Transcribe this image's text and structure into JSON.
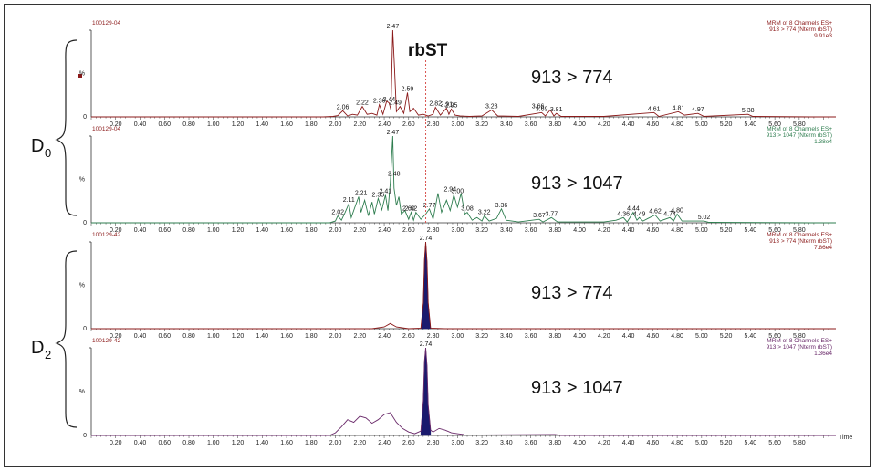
{
  "analyte_label": "rbST",
  "groups": [
    {
      "main": "D",
      "sub": "0"
    },
    {
      "main": "D",
      "sub": "2"
    }
  ],
  "x_tick_labels": [
    "0.20",
    "0.40",
    "0.60",
    "0.80",
    "1.00",
    "1.20",
    "1.40",
    "1.60",
    "1.80",
    "2.00",
    "2.20",
    "2.40",
    "2.60",
    "2.80",
    "3.00",
    "3.20",
    "3.40",
    "3.60",
    "3.80",
    "4.00",
    "4.20",
    "4.40",
    "4.60",
    "4.80",
    "5.00",
    "5.20",
    "5.40",
    "5.60",
    "5.80"
  ],
  "x_axis_title": "Time",
  "y_axis_symbol": "%",
  "y_zero": "0",
  "chart_data": [
    {
      "type": "line",
      "sample": "100129-04",
      "transition_label": "913 > 774",
      "header_lines": [
        "MRM of 8 Channels ES+",
        "913 > 774 (Nterm rbST)",
        "9.91e3"
      ],
      "color": "#8b1a1a",
      "fill": false,
      "xlim": [
        0.0,
        6.1
      ],
      "ylim": [
        0,
        100
      ],
      "marker_line_x": 2.74,
      "points": [
        [
          0.0,
          0
        ],
        [
          1.9,
          0
        ],
        [
          1.98,
          0.5
        ],
        [
          2.02,
          1.5
        ],
        [
          2.06,
          7
        ],
        [
          2.1,
          1
        ],
        [
          2.14,
          3
        ],
        [
          2.18,
          2
        ],
        [
          2.22,
          12
        ],
        [
          2.26,
          3
        ],
        [
          2.3,
          4
        ],
        [
          2.34,
          2
        ],
        [
          2.36,
          14
        ],
        [
          2.39,
          3
        ],
        [
          2.42,
          18
        ],
        [
          2.44,
          16
        ],
        [
          2.455,
          8
        ],
        [
          2.47,
          100
        ],
        [
          2.485,
          55
        ],
        [
          2.5,
          6
        ],
        [
          2.53,
          12
        ],
        [
          2.56,
          4
        ],
        [
          2.59,
          28
        ],
        [
          2.61,
          6
        ],
        [
          2.64,
          10
        ],
        [
          2.68,
          2
        ],
        [
          2.72,
          3
        ],
        [
          2.76,
          1
        ],
        [
          2.8,
          3
        ],
        [
          2.82,
          11
        ],
        [
          2.86,
          2
        ],
        [
          2.91,
          10
        ],
        [
          2.93,
          3
        ],
        [
          2.95,
          9
        ],
        [
          2.98,
          2
        ],
        [
          3.02,
          1
        ],
        [
          3.1,
          0.5
        ],
        [
          3.2,
          1
        ],
        [
          3.28,
          8
        ],
        [
          3.33,
          1
        ],
        [
          3.5,
          0.5
        ],
        [
          3.69,
          5
        ],
        [
          3.72,
          1
        ],
        [
          3.76,
          8
        ],
        [
          3.79,
          1
        ],
        [
          3.81,
          4
        ],
        [
          3.85,
          0.5
        ],
        [
          4.2,
          0.5
        ],
        [
          4.61,
          5
        ],
        [
          4.65,
          0.5
        ],
        [
          4.81,
          6
        ],
        [
          4.86,
          2
        ],
        [
          4.97,
          4
        ],
        [
          5.02,
          0.5
        ],
        [
          5.38,
          3
        ],
        [
          5.42,
          0.5
        ],
        [
          5.9,
          0
        ],
        [
          6.1,
          0
        ]
      ],
      "peak_labels": [
        {
          "x": 2.47,
          "y": 100,
          "text": "2.47"
        },
        {
          "x": 2.06,
          "y": 7,
          "text": "2.06"
        },
        {
          "x": 2.22,
          "y": 12,
          "text": "2.22"
        },
        {
          "x": 2.36,
          "y": 14,
          "text": "2.36"
        },
        {
          "x": 2.44,
          "y": 16,
          "text": "2.44"
        },
        {
          "x": 2.49,
          "y": 12,
          "text": "2.49"
        },
        {
          "x": 2.59,
          "y": 28,
          "text": "2.59"
        },
        {
          "x": 2.82,
          "y": 11,
          "text": "2.82"
        },
        {
          "x": 2.91,
          "y": 10,
          "text": "2.91"
        },
        {
          "x": 2.95,
          "y": 9,
          "text": "2.95"
        },
        {
          "x": 3.28,
          "y": 8,
          "text": "3.28"
        },
        {
          "x": 3.66,
          "y": 8,
          "text": "3.66"
        },
        {
          "x": 3.69,
          "y": 5,
          "text": "3.69"
        },
        {
          "x": 3.81,
          "y": 4,
          "text": "3.81"
        },
        {
          "x": 4.61,
          "y": 5,
          "text": "4.61"
        },
        {
          "x": 4.81,
          "y": 6,
          "text": "4.81"
        },
        {
          "x": 4.97,
          "y": 4,
          "text": "4.97"
        },
        {
          "x": 5.38,
          "y": 3,
          "text": "5.38"
        }
      ]
    },
    {
      "type": "line",
      "sample": "100129-04",
      "transition_label": "913 > 1047",
      "header_lines": [
        "MRM of 8 Channels ES+",
        "913 > 1047 (Nterm rbST)",
        "1.38e4"
      ],
      "color": "#2e7d4f",
      "fill": false,
      "xlim": [
        0.0,
        6.1
      ],
      "ylim": [
        0,
        100
      ],
      "marker_line_x": 2.74,
      "points": [
        [
          0.0,
          0
        ],
        [
          1.95,
          0
        ],
        [
          2.0,
          2
        ],
        [
          2.02,
          8
        ],
        [
          2.05,
          3
        ],
        [
          2.08,
          12
        ],
        [
          2.11,
          22
        ],
        [
          2.13,
          6
        ],
        [
          2.16,
          18
        ],
        [
          2.19,
          30
        ],
        [
          2.21,
          12
        ],
        [
          2.24,
          26
        ],
        [
          2.27,
          8
        ],
        [
          2.3,
          24
        ],
        [
          2.32,
          10
        ],
        [
          2.35,
          28
        ],
        [
          2.38,
          15
        ],
        [
          2.41,
          32
        ],
        [
          2.43,
          14
        ],
        [
          2.45,
          46
        ],
        [
          2.47,
          100
        ],
        [
          2.48,
          40
        ],
        [
          2.5,
          20
        ],
        [
          2.52,
          30
        ],
        [
          2.54,
          10
        ],
        [
          2.57,
          14
        ],
        [
          2.6,
          4
        ],
        [
          2.62,
          12
        ],
        [
          2.64,
          3
        ],
        [
          2.66,
          12
        ],
        [
          2.7,
          4
        ],
        [
          2.74,
          10
        ],
        [
          2.77,
          16
        ],
        [
          2.8,
          4
        ],
        [
          2.84,
          34
        ],
        [
          2.87,
          12
        ],
        [
          2.91,
          26
        ],
        [
          2.94,
          14
        ],
        [
          2.97,
          32
        ],
        [
          3.0,
          18
        ],
        [
          3.03,
          34
        ],
        [
          3.06,
          10
        ],
        [
          3.08,
          12
        ],
        [
          3.12,
          3
        ],
        [
          3.16,
          6
        ],
        [
          3.2,
          2
        ],
        [
          3.22,
          8
        ],
        [
          3.26,
          2
        ],
        [
          3.32,
          5
        ],
        [
          3.36,
          16
        ],
        [
          3.4,
          3
        ],
        [
          3.5,
          1
        ],
        [
          3.67,
          4
        ],
        [
          3.7,
          1
        ],
        [
          3.77,
          6
        ],
        [
          3.82,
          1
        ],
        [
          4.2,
          1
        ],
        [
          4.3,
          3
        ],
        [
          4.36,
          6
        ],
        [
          4.39,
          1
        ],
        [
          4.44,
          12
        ],
        [
          4.47,
          3
        ],
        [
          4.49,
          6
        ],
        [
          4.52,
          2
        ],
        [
          4.56,
          5
        ],
        [
          4.62,
          9
        ],
        [
          4.66,
          2
        ],
        [
          4.74,
          6
        ],
        [
          4.77,
          2
        ],
        [
          4.8,
          10
        ],
        [
          4.84,
          2
        ],
        [
          5.02,
          2
        ],
        [
          5.06,
          0.5
        ],
        [
          5.9,
          0
        ],
        [
          6.1,
          0
        ]
      ],
      "peak_labels": [
        {
          "x": 2.47,
          "y": 100,
          "text": "2.47"
        },
        {
          "x": 2.02,
          "y": 8,
          "text": "2.02"
        },
        {
          "x": 2.11,
          "y": 22,
          "text": "2.11"
        },
        {
          "x": 2.21,
          "y": 30,
          "text": "2.21"
        },
        {
          "x": 2.35,
          "y": 28,
          "text": "2.35"
        },
        {
          "x": 2.41,
          "y": 32,
          "text": "2.41"
        },
        {
          "x": 2.48,
          "y": 52,
          "text": "2.48"
        },
        {
          "x": 2.6,
          "y": 12,
          "text": "2.60"
        },
        {
          "x": 2.62,
          "y": 12,
          "text": "2.62"
        },
        {
          "x": 2.77,
          "y": 16,
          "text": "2.77"
        },
        {
          "x": 2.94,
          "y": 34,
          "text": "2.94"
        },
        {
          "x": 3.0,
          "y": 32,
          "text": "3.00"
        },
        {
          "x": 3.08,
          "y": 12,
          "text": "3.08"
        },
        {
          "x": 3.22,
          "y": 8,
          "text": "3.22"
        },
        {
          "x": 3.36,
          "y": 16,
          "text": "3.36"
        },
        {
          "x": 3.67,
          "y": 4,
          "text": "3.67"
        },
        {
          "x": 3.77,
          "y": 6,
          "text": "3.77"
        },
        {
          "x": 4.36,
          "y": 6,
          "text": "4.36"
        },
        {
          "x": 4.44,
          "y": 12,
          "text": "4.44"
        },
        {
          "x": 4.49,
          "y": 6,
          "text": "4.49"
        },
        {
          "x": 4.62,
          "y": 9,
          "text": "4.62"
        },
        {
          "x": 4.74,
          "y": 6,
          "text": "4.74"
        },
        {
          "x": 4.8,
          "y": 10,
          "text": "4.80"
        },
        {
          "x": 5.02,
          "y": 2,
          "text": "5.02"
        }
      ]
    },
    {
      "type": "area",
      "sample": "100129-42",
      "transition_label": "913 > 774",
      "header_lines": [
        "MRM of 8 Channels ES+",
        "913 > 774 (Nterm rbST)",
        "7.86e4"
      ],
      "color": "#8b1a1a",
      "fill": true,
      "fill_color": "#1a1a6e",
      "fill_range": [
        2.7,
        2.78
      ],
      "xlim": [
        0.0,
        6.1
      ],
      "ylim": [
        0,
        100
      ],
      "points": [
        [
          0.0,
          0
        ],
        [
          2.3,
          0
        ],
        [
          2.4,
          2
        ],
        [
          2.45,
          6
        ],
        [
          2.5,
          2
        ],
        [
          2.6,
          0
        ],
        [
          2.7,
          0.5
        ],
        [
          2.72,
          30
        ],
        [
          2.73,
          80
        ],
        [
          2.74,
          100
        ],
        [
          2.75,
          78
        ],
        [
          2.76,
          30
        ],
        [
          2.78,
          0.5
        ],
        [
          2.9,
          0
        ],
        [
          6.1,
          0
        ]
      ],
      "peak_labels": [
        {
          "x": 2.74,
          "y": 100,
          "text": "2.74"
        }
      ]
    },
    {
      "type": "area",
      "sample": "100129-42",
      "transition_label": "913 > 1047",
      "header_lines": [
        "MRM of 8 Channels ES+",
        "913 > 1047 (Nterm rbST)",
        "1.36e4"
      ],
      "color": "#6a2a6a",
      "fill": true,
      "fill_color": "#1a1a6e",
      "fill_range": [
        2.7,
        2.78
      ],
      "xlim": [
        0.0,
        6.1
      ],
      "ylim": [
        0,
        100
      ],
      "points": [
        [
          0.0,
          0
        ],
        [
          1.95,
          0
        ],
        [
          2.0,
          3
        ],
        [
          2.05,
          10
        ],
        [
          2.1,
          18
        ],
        [
          2.15,
          15
        ],
        [
          2.2,
          22
        ],
        [
          2.25,
          20
        ],
        [
          2.3,
          14
        ],
        [
          2.35,
          18
        ],
        [
          2.4,
          24
        ],
        [
          2.45,
          26
        ],
        [
          2.5,
          15
        ],
        [
          2.55,
          8
        ],
        [
          2.6,
          4
        ],
        [
          2.65,
          2
        ],
        [
          2.7,
          5
        ],
        [
          2.72,
          40
        ],
        [
          2.73,
          85
        ],
        [
          2.74,
          100
        ],
        [
          2.75,
          80
        ],
        [
          2.76,
          35
        ],
        [
          2.78,
          6
        ],
        [
          2.8,
          4
        ],
        [
          2.85,
          8
        ],
        [
          2.9,
          6
        ],
        [
          2.95,
          3
        ],
        [
          3.0,
          2
        ],
        [
          3.05,
          1
        ],
        [
          3.2,
          0.5
        ],
        [
          3.8,
          1
        ],
        [
          3.85,
          0
        ],
        [
          6.1,
          0
        ]
      ],
      "peak_labels": [
        {
          "x": 2.74,
          "y": 100,
          "text": "2.74"
        }
      ]
    }
  ]
}
